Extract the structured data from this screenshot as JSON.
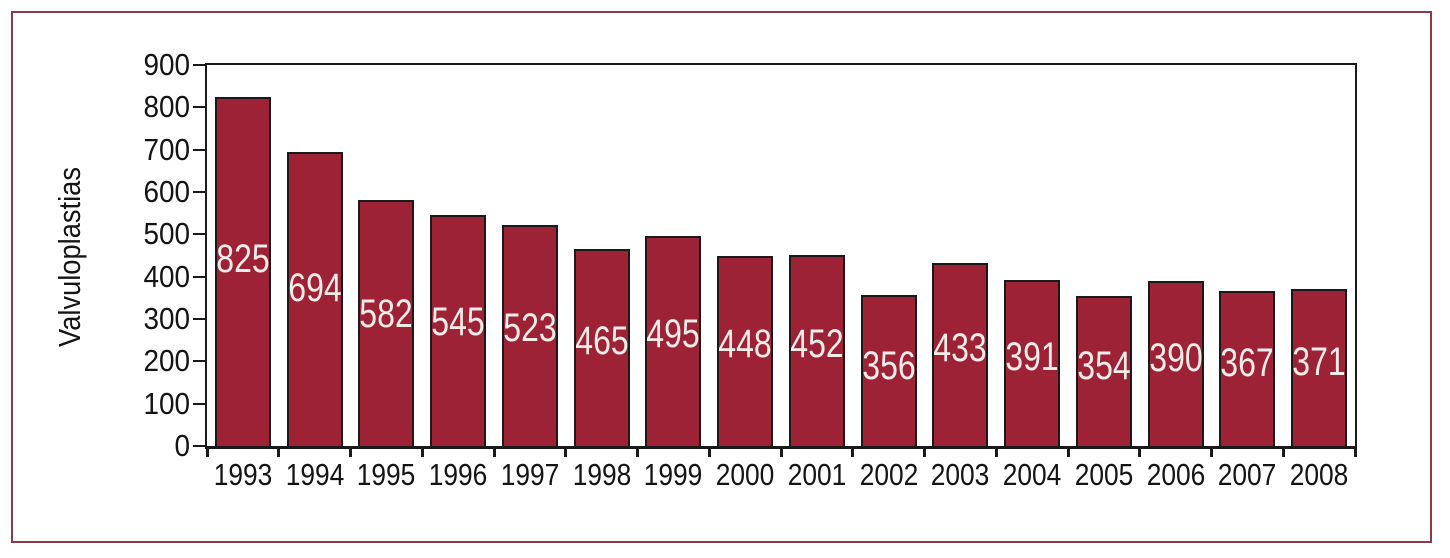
{
  "figure": {
    "background": "#ffffff",
    "border_color": "#8c3a4a"
  },
  "chart_data": {
    "type": "bar",
    "title": "",
    "ylabel": "Valvuloplastias",
    "xlabel": "",
    "categories": [
      "1993",
      "1994",
      "1995",
      "1996",
      "1997",
      "1998",
      "1999",
      "2000",
      "2001",
      "2002",
      "2003",
      "2004",
      "2005",
      "2006",
      "2007",
      "2008"
    ],
    "values": [
      825,
      694,
      582,
      545,
      523,
      465,
      495,
      448,
      452,
      356,
      433,
      391,
      354,
      390,
      367,
      371
    ],
    "ylim": [
      0,
      900
    ],
    "ytick_step": 100,
    "ytick_labels": [
      "0",
      "100",
      "200",
      "300",
      "400",
      "500",
      "600",
      "700",
      "800",
      "900"
    ],
    "grid": false,
    "legend": "none",
    "value_labels_position": "inside-bar",
    "bar_color": "#9e2235",
    "bar_border_color": "#1a1a1a",
    "axis_color": "#1a1a1a",
    "value_label_color": "#f2ece8",
    "tick_label_color": "#141414"
  }
}
